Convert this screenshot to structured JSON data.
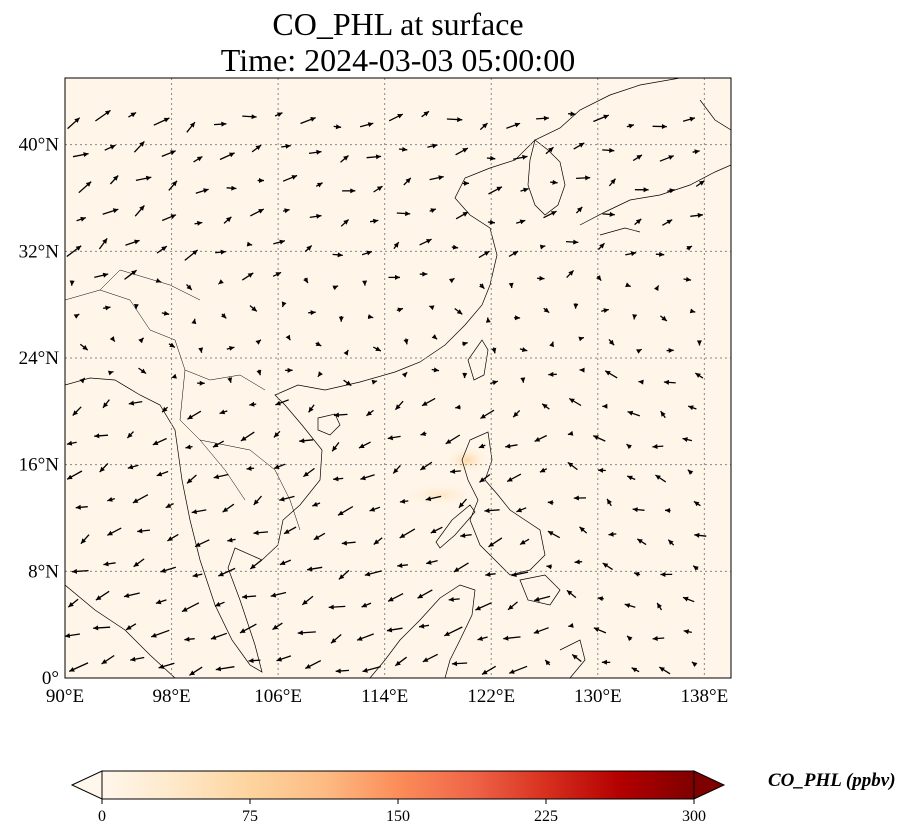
{
  "figure": {
    "title_line1": "CO_PHL at surface",
    "title_line2": "Time: 2024-03-03 05:00:00"
  },
  "map": {
    "lon_range": [
      90,
      140
    ],
    "lat_range": [
      0,
      45
    ],
    "lon_ticks": [
      {
        "value": 90,
        "label": "90°E"
      },
      {
        "value": 98,
        "label": "98°E"
      },
      {
        "value": 106,
        "label": "106°E"
      },
      {
        "value": 114,
        "label": "114°E"
      },
      {
        "value": 122,
        "label": "122°E"
      },
      {
        "value": 130,
        "label": "130°E"
      },
      {
        "value": 138,
        "label": "138°E"
      }
    ],
    "lat_ticks": [
      {
        "value": 0,
        "label": "0°"
      },
      {
        "value": 8,
        "label": "8°N"
      },
      {
        "value": 16,
        "label": "16°N"
      },
      {
        "value": 24,
        "label": "24°N"
      },
      {
        "value": 32,
        "label": "32°N"
      },
      {
        "value": 40,
        "label": "40°N"
      }
    ],
    "gridlines": true,
    "background_color": "#fff5e8",
    "coastline_color": "#000000"
  },
  "colorbar": {
    "label": "CO_PHL (ppbv)",
    "min": 0,
    "max": 300,
    "extend": "both",
    "colormap": "OrRd",
    "ticks": [
      {
        "value": 0,
        "label": "0"
      },
      {
        "value": 75,
        "label": "75"
      },
      {
        "value": 150,
        "label": "150"
      },
      {
        "value": 225,
        "label": "225"
      },
      {
        "value": 300,
        "label": "300"
      }
    ],
    "colors": [
      "#fff7ec",
      "#fee8c8",
      "#fdd49e",
      "#fdbb84",
      "#fc8d59",
      "#ef6548",
      "#d7301f",
      "#b30000",
      "#7f0000"
    ]
  }
}
